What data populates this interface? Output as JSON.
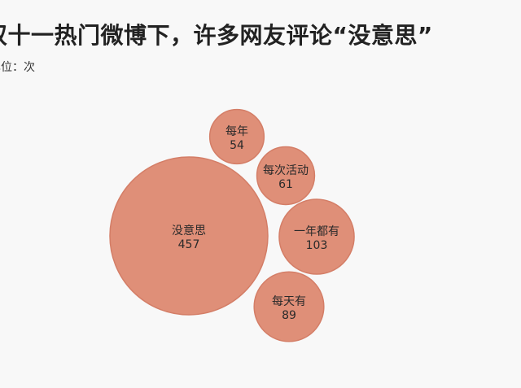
{
  "chart_data": {
    "type": "bubble",
    "title": "双十一热门微博下，许多网友评论“没意思”",
    "subtitle": "单位：次",
    "categories": [
      "没意思",
      "每年",
      "每次活动",
      "一年都有",
      "每天有"
    ],
    "values": [
      457,
      54,
      61,
      103,
      89
    ],
    "color": "#df8f78",
    "stroke_color": "#d47e67",
    "legend": "none",
    "grid": false
  }
}
